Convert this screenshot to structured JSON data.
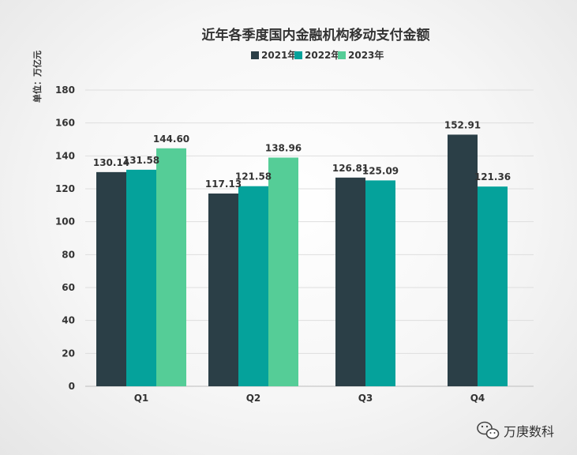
{
  "chart_data": {
    "type": "bar",
    "title": "近年各季度国内金融机构移动支付金额",
    "unit_label": "单位：万亿元",
    "categories": [
      "Q1",
      "Q2",
      "Q3",
      "Q4"
    ],
    "series": [
      {
        "name": "2021年",
        "color": "#2b3f47",
        "values": [
          130.14,
          117.13,
          126.81,
          152.91
        ]
      },
      {
        "name": "2022年",
        "color": "#05a29b",
        "values": [
          131.58,
          121.58,
          125.09,
          121.36
        ]
      },
      {
        "name": "2023年",
        "color": "#55cd97",
        "values": [
          144.6,
          138.96,
          null,
          null
        ]
      }
    ],
    "ylim": [
      0,
      180
    ],
    "yticks": [
      "0",
      "20",
      "40",
      "60",
      "80",
      "100",
      "120",
      "140",
      "160",
      "180"
    ],
    "grid": true,
    "legend_position": "top-center"
  },
  "watermark": {
    "text": "万庚数科",
    "icon": "wechat-icon"
  }
}
